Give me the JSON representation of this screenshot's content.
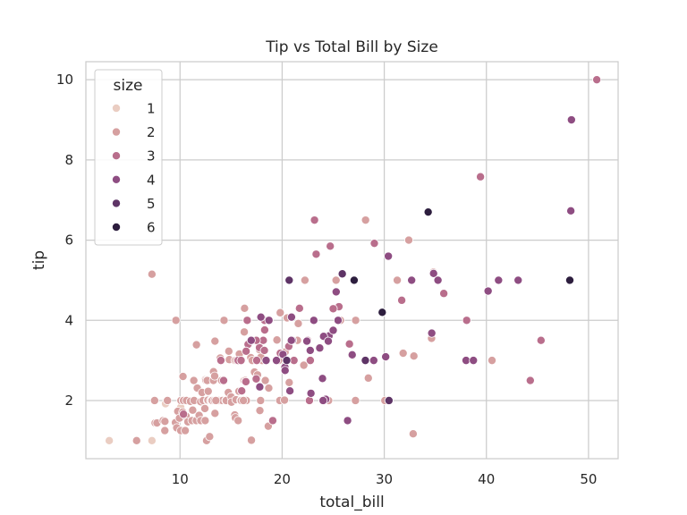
{
  "chart_data": {
    "type": "scatter",
    "title": "Tip vs Total Bill by Size",
    "xlabel": "total_bill",
    "ylabel": "tip",
    "xlim": [
      0.78,
      52.9
    ],
    "ylim": [
      0.55,
      10.45
    ],
    "xticks": [
      10,
      20,
      30,
      40,
      50
    ],
    "yticks": [
      2,
      4,
      6,
      8,
      10
    ],
    "grid": true,
    "legend": {
      "title": "size",
      "placement": "top-left",
      "entries": [
        {
          "label": "1",
          "color": "#eacdc2"
        },
        {
          "label": "2",
          "color": "#d6a0a0"
        },
        {
          "label": "3",
          "color": "#b96e8c"
        },
        {
          "label": "4",
          "color": "#8e4d82"
        },
        {
          "label": "5",
          "color": "#5e3466"
        },
        {
          "label": "6",
          "color": "#2d1e3e"
        }
      ]
    },
    "series": [
      {
        "name": "1",
        "color": "#eacdc2",
        "points": [
          [
            3.07,
            1.0
          ],
          [
            7.25,
            1.0
          ],
          [
            8.58,
            1.92
          ],
          [
            10.07,
            1.83
          ]
        ]
      },
      {
        "name": "2",
        "color": "#d6a0a0",
        "points": [
          [
            7.25,
            5.15
          ],
          [
            5.75,
            1.0
          ],
          [
            7.51,
            2.0
          ],
          [
            7.56,
            1.44
          ],
          [
            7.74,
            1.44
          ],
          [
            8.35,
            1.5
          ],
          [
            8.51,
            1.25
          ],
          [
            8.52,
            1.48
          ],
          [
            8.77,
            2.0
          ],
          [
            9.55,
            1.45
          ],
          [
            9.6,
            4.0
          ],
          [
            9.68,
            1.32
          ],
          [
            9.78,
            1.73
          ],
          [
            9.94,
            1.56
          ],
          [
            10.07,
            1.25
          ],
          [
            10.09,
            2.0
          ],
          [
            10.27,
            1.71
          ],
          [
            10.29,
            2.6
          ],
          [
            10.33,
            2.0
          ],
          [
            10.34,
            2.0
          ],
          [
            10.51,
            1.25
          ],
          [
            10.59,
            1.61
          ],
          [
            10.63,
            2.0
          ],
          [
            10.77,
            1.47
          ],
          [
            11.02,
            1.98
          ],
          [
            11.17,
            1.5
          ],
          [
            11.24,
            1.76
          ],
          [
            11.35,
            2.5
          ],
          [
            11.38,
            2.0
          ],
          [
            11.59,
            1.5
          ],
          [
            11.61,
            3.39
          ],
          [
            11.69,
            2.31
          ],
          [
            11.87,
            1.63
          ],
          [
            12.02,
            1.97
          ],
          [
            12.03,
            1.5
          ],
          [
            12.16,
            2.2
          ],
          [
            12.26,
            2.0
          ],
          [
            12.43,
            1.8
          ],
          [
            12.46,
            1.5
          ],
          [
            12.48,
            2.52
          ],
          [
            12.54,
            2.5
          ],
          [
            12.6,
            1.0
          ],
          [
            12.66,
            2.5
          ],
          [
            12.69,
            2.0
          ],
          [
            12.74,
            2.01
          ],
          [
            12.9,
            1.1
          ],
          [
            13.0,
            2.0
          ],
          [
            13.03,
            2.0
          ],
          [
            13.13,
            2.0
          ],
          [
            13.16,
            2.0
          ],
          [
            13.27,
            2.5
          ],
          [
            13.28,
            2.72
          ],
          [
            13.37,
            2.0
          ],
          [
            13.39,
            2.61
          ],
          [
            13.42,
            1.68
          ],
          [
            13.42,
            3.48
          ],
          [
            13.81,
            2.0
          ],
          [
            13.94,
            3.06
          ],
          [
            14.15,
            2.0
          ],
          [
            14.26,
            2.5
          ],
          [
            14.31,
            4.0
          ],
          [
            14.48,
            2.0
          ],
          [
            14.52,
            2.0
          ],
          [
            14.73,
            2.2
          ],
          [
            14.78,
            3.23
          ],
          [
            14.83,
            3.02
          ],
          [
            15.01,
            2.09
          ],
          [
            15.04,
            1.96
          ],
          [
            15.36,
            1.64
          ],
          [
            15.38,
            3.0
          ],
          [
            15.42,
            1.57
          ],
          [
            15.48,
            2.02
          ],
          [
            15.53,
            3.0
          ],
          [
            15.69,
            3.0
          ],
          [
            15.77,
            2.23
          ],
          [
            15.81,
            3.16
          ],
          [
            15.95,
            2.0
          ],
          [
            15.98,
            3.0
          ],
          [
            16.0,
            2.0
          ],
          [
            16.04,
            2.24
          ],
          [
            16.27,
            2.5
          ],
          [
            16.29,
            3.71
          ],
          [
            16.31,
            2.0
          ],
          [
            16.32,
            4.3
          ],
          [
            16.4,
            2.5
          ],
          [
            16.45,
            2.47
          ],
          [
            16.49,
            2.0
          ],
          [
            16.58,
            4.0
          ],
          [
            16.66,
            3.4
          ],
          [
            16.93,
            3.07
          ],
          [
            16.97,
            3.5
          ],
          [
            16.99,
            1.01
          ],
          [
            17.07,
            3.0
          ],
          [
            17.29,
            2.71
          ],
          [
            17.31,
            3.5
          ],
          [
            17.46,
            2.54
          ],
          [
            17.47,
            3.5
          ],
          [
            17.51,
            3.0
          ],
          [
            17.59,
            2.64
          ],
          [
            17.78,
            3.27
          ],
          [
            17.81,
            2.34
          ],
          [
            17.82,
            1.75
          ],
          [
            17.89,
            2.0
          ],
          [
            17.92,
            4.08
          ],
          [
            18.04,
            3.0
          ],
          [
            18.24,
            3.76
          ],
          [
            18.26,
            3.25
          ],
          [
            18.28,
            4.0
          ],
          [
            18.29,
            3.76
          ],
          [
            18.35,
            2.5
          ],
          [
            18.43,
            3.0
          ],
          [
            18.64,
            1.36
          ],
          [
            18.69,
            2.31
          ],
          [
            18.71,
            4.0
          ],
          [
            19.08,
            1.5
          ],
          [
            19.44,
            3.0
          ],
          [
            19.49,
            3.51
          ],
          [
            19.65,
            3.0
          ],
          [
            19.77,
            2.0
          ],
          [
            19.81,
            4.19
          ],
          [
            19.82,
            3.18
          ],
          [
            20.08,
            3.15
          ],
          [
            20.23,
            2.01
          ],
          [
            20.27,
            2.83
          ],
          [
            20.29,
            2.75
          ],
          [
            20.29,
            3.21
          ],
          [
            20.45,
            3.0
          ],
          [
            20.49,
            4.06
          ],
          [
            20.65,
            3.35
          ],
          [
            20.69,
            2.45
          ],
          [
            20.76,
            2.24
          ],
          [
            20.9,
            3.5
          ],
          [
            21.01,
            3.5
          ],
          [
            21.16,
            3.0
          ],
          [
            21.5,
            3.5
          ],
          [
            21.58,
            3.92
          ],
          [
            21.7,
            4.3
          ],
          [
            22.12,
            2.88
          ],
          [
            22.23,
            5.0
          ],
          [
            22.42,
            3.48
          ],
          [
            22.67,
            2.0
          ],
          [
            22.75,
            3.25
          ],
          [
            22.82,
            2.18
          ],
          [
            23.1,
            4.0
          ],
          [
            23.33,
            5.65
          ],
          [
            23.68,
            3.31
          ],
          [
            23.95,
            2.55
          ],
          [
            24.06,
            3.6
          ],
          [
            24.27,
            2.03
          ],
          [
            24.52,
            3.48
          ],
          [
            24.55,
            2.0
          ],
          [
            24.59,
            3.61
          ],
          [
            25.0,
            3.75
          ],
          [
            25.28,
            5.0
          ],
          [
            25.29,
            4.71
          ],
          [
            25.56,
            4.34
          ],
          [
            26.41,
            1.5
          ],
          [
            26.86,
            3.14
          ],
          [
            27.18,
            2.0
          ],
          [
            27.2,
            4.0
          ],
          [
            28.17,
            6.5
          ],
          [
            28.44,
            2.56
          ],
          [
            28.97,
            3.0
          ],
          [
            29.8,
            4.2
          ],
          [
            30.06,
            2.0
          ],
          [
            30.4,
            5.6
          ],
          [
            31.27,
            5.0
          ],
          [
            31.85,
            3.18
          ],
          [
            32.4,
            6.0
          ],
          [
            32.68,
            5.0
          ],
          [
            32.83,
            1.17
          ],
          [
            32.9,
            3.11
          ],
          [
            34.63,
            3.55
          ],
          [
            34.65,
            3.68
          ],
          [
            34.81,
            5.2
          ],
          [
            35.26,
            5.0
          ],
          [
            40.55,
            3.0
          ],
          [
            43.11,
            5.0
          ],
          [
            15.69,
            1.5
          ],
          [
            14.07,
            2.5
          ],
          [
            13.51,
            2.0
          ],
          [
            12.76,
            2.23
          ],
          [
            25.71,
            4.0
          ],
          [
            16.21,
            2.0
          ],
          [
            17.92,
            3.08
          ]
        ]
      },
      {
        "name": "3",
        "color": "#b96e8c",
        "points": [
          [
            10.34,
            1.66
          ],
          [
            21.01,
            3.5
          ],
          [
            17.78,
            3.32
          ],
          [
            18.15,
            3.5
          ],
          [
            14.0,
            3.0
          ],
          [
            16.04,
            2.24
          ],
          [
            23.33,
            5.65
          ],
          [
            24.71,
            5.85
          ],
          [
            14.27,
            2.5
          ],
          [
            18.26,
            3.25
          ],
          [
            16.45,
            2.47
          ],
          [
            15.69,
            3.0
          ],
          [
            22.82,
            2.18
          ],
          [
            16.66,
            3.4
          ],
          [
            17.51,
            3.0
          ],
          [
            16.58,
            4.0
          ],
          [
            18.29,
            3.76
          ],
          [
            21.16,
            3.0
          ],
          [
            20.69,
            5.0
          ],
          [
            21.7,
            4.3
          ],
          [
            22.49,
            3.5
          ],
          [
            24.01,
            2.0
          ],
          [
            29.03,
            5.92
          ],
          [
            22.67,
            2.0
          ],
          [
            26.88,
            3.12
          ],
          [
            25.56,
            4.34
          ],
          [
            19.82,
            3.18
          ],
          [
            44.3,
            2.5
          ],
          [
            45.35,
            3.5
          ],
          [
            35.83,
            4.67
          ],
          [
            17.46,
            2.54
          ],
          [
            23.17,
            6.5
          ],
          [
            24.52,
            3.48
          ],
          [
            15.98,
            3.0
          ],
          [
            20.65,
            3.35
          ],
          [
            38.07,
            4.0
          ],
          [
            17.47,
            3.5
          ],
          [
            27.05,
            5.0
          ],
          [
            16.47,
            3.23
          ],
          [
            29.03,
            5.92
          ],
          [
            31.71,
            4.5
          ],
          [
            30.46,
            2.0
          ],
          [
            50.81,
            10.0
          ],
          [
            39.42,
            7.58
          ],
          [
            26.59,
            3.41
          ],
          [
            28.15,
            3.0
          ],
          [
            18.28,
            4.0
          ],
          [
            25.0,
            4.29
          ],
          [
            19.08,
            1.5
          ],
          [
            22.76,
            3.0
          ]
        ]
      },
      {
        "name": "4",
        "color": "#8e4d82",
        "points": [
          [
            24.59,
            3.61
          ],
          [
            25.29,
            4.71
          ],
          [
            38.01,
            3.0
          ],
          [
            48.27,
            6.73
          ],
          [
            48.17,
            5.0
          ],
          [
            48.33,
            9.0
          ],
          [
            40.17,
            4.73
          ],
          [
            38.73,
            3.0
          ],
          [
            34.83,
            5.17
          ],
          [
            22.42,
            3.48
          ],
          [
            30.4,
            5.6
          ],
          [
            30.14,
            3.09
          ],
          [
            29.8,
            4.2
          ],
          [
            21.01,
            3.5
          ],
          [
            18.71,
            4.0
          ],
          [
            17.81,
            2.34
          ],
          [
            24.08,
            2.0
          ],
          [
            25.89,
            5.16
          ],
          [
            20.08,
            3.15
          ],
          [
            23.68,
            3.31
          ],
          [
            20.27,
            2.83
          ],
          [
            23.95,
            2.55
          ],
          [
            28.97,
            3.0
          ],
          [
            20.76,
            2.24
          ],
          [
            24.06,
            3.6
          ],
          [
            32.68,
            5.0
          ],
          [
            43.11,
            5.0
          ],
          [
            25.48,
            4.0
          ],
          [
            26.86,
            3.14
          ],
          [
            18.43,
            3.0
          ],
          [
            16.97,
            3.5
          ],
          [
            20.92,
            4.08
          ],
          [
            34.65,
            3.68
          ],
          [
            35.26,
            5.0
          ],
          [
            19.44,
            3.0
          ],
          [
            24.52,
            3.48
          ],
          [
            22.82,
            2.18
          ],
          [
            23.1,
            4.0
          ],
          [
            20.29,
            2.75
          ],
          [
            24.27,
            2.03
          ],
          [
            22.75,
            3.25
          ],
          [
            26.41,
            1.5
          ],
          [
            25.0,
            3.75
          ],
          [
            17.92,
            4.08
          ],
          [
            24.01,
            2.0
          ],
          [
            20.9,
            3.5
          ],
          [
            41.19,
            5.0
          ]
        ]
      },
      {
        "name": "5",
        "color": "#5e3466",
        "points": [
          [
            20.69,
            5.0
          ],
          [
            25.89,
            5.16
          ],
          [
            28.15,
            3.0
          ],
          [
            20.45,
            3.0
          ],
          [
            30.46,
            2.0
          ]
        ]
      },
      {
        "name": "6",
        "color": "#2d1e3e",
        "points": [
          [
            27.05,
            5.0
          ],
          [
            48.17,
            5.0
          ],
          [
            34.3,
            6.7
          ],
          [
            29.8,
            4.2
          ]
        ]
      }
    ]
  }
}
